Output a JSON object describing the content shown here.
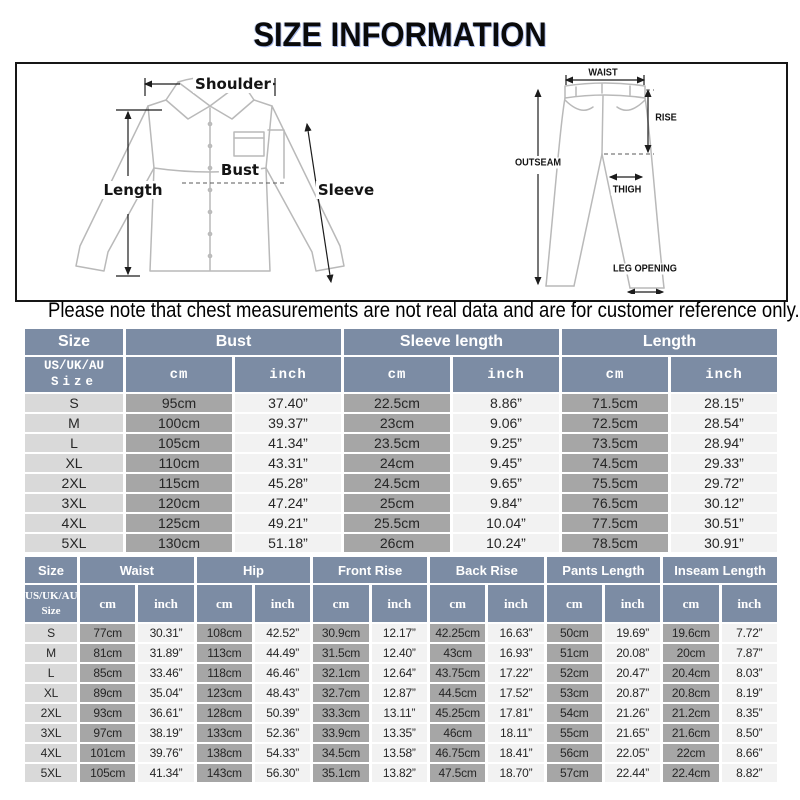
{
  "title": "SIZE INFORMATION",
  "note": "Please note that chest measurements are not real data and are for customer reference only.",
  "colors": {
    "header_bg": "#7c8ca4",
    "size_col_bg": "#d9d9d9",
    "cm_col_bg": "#a6a6a6",
    "inch_col_bg": "#f2f2f2"
  },
  "shirt_diagram": {
    "shoulder": "Shoulder",
    "length": "Length",
    "bust": "Bust",
    "sleeve": "Sleeve"
  },
  "pants_diagram": {
    "waist": "WAIST",
    "rise": "RISE",
    "outseam": "OUTSEAM",
    "thigh": "THIGH",
    "leg_opening": "LEG OPENING"
  },
  "top_table": {
    "group_headers": [
      "Size",
      "Bust",
      "Sleeve length",
      "Length"
    ],
    "size_header": {
      "line1": "US/UK/AU",
      "line2": "Size"
    },
    "units": {
      "cm": "cm",
      "inch": "inch"
    },
    "rows": [
      {
        "size": "S",
        "cells": [
          "95cm",
          "37.40”",
          "22.5cm",
          "8.86”",
          "71.5cm",
          "28.15”"
        ]
      },
      {
        "size": "M",
        "cells": [
          "100cm",
          "39.37”",
          "23cm",
          "9.06”",
          "72.5cm",
          "28.54”"
        ]
      },
      {
        "size": "L",
        "cells": [
          "105cm",
          "41.34”",
          "23.5cm",
          "9.25”",
          "73.5cm",
          "28.94”"
        ]
      },
      {
        "size": "XL",
        "cells": [
          "110cm",
          "43.31”",
          "24cm",
          "9.45”",
          "74.5cm",
          "29.33”"
        ]
      },
      {
        "size": "2XL",
        "cells": [
          "115cm",
          "45.28”",
          "24.5cm",
          "9.65”",
          "75.5cm",
          "29.72”"
        ]
      },
      {
        "size": "3XL",
        "cells": [
          "120cm",
          "47.24”",
          "25cm",
          "9.84”",
          "76.5cm",
          "30.12”"
        ]
      },
      {
        "size": "4XL",
        "cells": [
          "125cm",
          "49.21”",
          "25.5cm",
          "10.04”",
          "77.5cm",
          "30.51”"
        ]
      },
      {
        "size": "5XL",
        "cells": [
          "130cm",
          "51.18”",
          "26cm",
          "10.24”",
          "78.5cm",
          "30.91”"
        ]
      }
    ]
  },
  "bottom_table": {
    "group_headers": [
      "Size",
      "Waist",
      "Hip",
      "Front Rise",
      "Back Rise",
      "Pants Length",
      "Inseam Length"
    ],
    "size_header": {
      "line1": "US/UK/AU",
      "line2": "Size"
    },
    "units": {
      "cm": "cm",
      "inch": "inch"
    },
    "rows": [
      {
        "size": "S",
        "cells": [
          "77cm",
          "30.31”",
          "108cm",
          "42.52”",
          "30.9cm",
          "12.17”",
          "42.25cm",
          "16.63”",
          "50cm",
          "19.69”",
          "19.6cm",
          "7.72”"
        ]
      },
      {
        "size": "M",
        "cells": [
          "81cm",
          "31.89”",
          "113cm",
          "44.49”",
          "31.5cm",
          "12.40”",
          "43cm",
          "16.93”",
          "51cm",
          "20.08”",
          "20cm",
          "7.87”"
        ]
      },
      {
        "size": "L",
        "cells": [
          "85cm",
          "33.46”",
          "118cm",
          "46.46”",
          "32.1cm",
          "12.64”",
          "43.75cm",
          "17.22”",
          "52cm",
          "20.47”",
          "20.4cm",
          "8.03”"
        ]
      },
      {
        "size": "XL",
        "cells": [
          "89cm",
          "35.04”",
          "123cm",
          "48.43”",
          "32.7cm",
          "12.87”",
          "44.5cm",
          "17.52”",
          "53cm",
          "20.87”",
          "20.8cm",
          "8.19”"
        ]
      },
      {
        "size": "2XL",
        "cells": [
          "93cm",
          "36.61”",
          "128cm",
          "50.39”",
          "33.3cm",
          "13.11”",
          "45.25cm",
          "17.81”",
          "54cm",
          "21.26”",
          "21.2cm",
          "8.35”"
        ]
      },
      {
        "size": "3XL",
        "cells": [
          "97cm",
          "38.19”",
          "133cm",
          "52.36”",
          "33.9cm",
          "13.35”",
          "46cm",
          "18.11”",
          "55cm",
          "21.65”",
          "21.6cm",
          "8.50”"
        ]
      },
      {
        "size": "4XL",
        "cells": [
          "101cm",
          "39.76”",
          "138cm",
          "54.33”",
          "34.5cm",
          "13.58”",
          "46.75cm",
          "18.41”",
          "56cm",
          "22.05”",
          "22cm",
          "8.66”"
        ]
      },
      {
        "size": "5XL",
        "cells": [
          "105cm",
          "41.34”",
          "143cm",
          "56.30”",
          "35.1cm",
          "13.82”",
          "47.5cm",
          "18.70”",
          "57cm",
          "22.44”",
          "22.4cm",
          "8.82”"
        ]
      }
    ]
  }
}
